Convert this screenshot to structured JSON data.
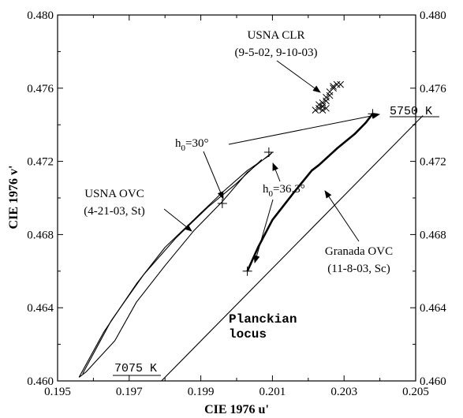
{
  "chart_data": {
    "type": "line",
    "xlabel": "CIE 1976 u'",
    "ylabel": "CIE 1976 v'",
    "xlim": [
      0.195,
      0.205
    ],
    "ylim": [
      0.46,
      0.48
    ],
    "x_ticks": [
      0.195,
      0.197,
      0.199,
      0.201,
      0.203,
      0.205
    ],
    "y_ticks": [
      0.46,
      0.464,
      0.468,
      0.472,
      0.476,
      0.48
    ],
    "x_tick_labels": [
      "0.195",
      "0.197",
      "0.199",
      "0.201",
      "0.203",
      "0.205"
    ],
    "y_tick_labels": [
      "0.460",
      "0.464",
      "0.468",
      "0.472",
      "0.476",
      "0.480"
    ],
    "grid": false,
    "series": [
      {
        "name": "Planckian locus",
        "style": "thin-line",
        "x": [
          0.1979,
          0.2052
        ],
        "y": [
          0.46,
          0.4745
        ]
      },
      {
        "name": "USNA OVC (4-21-03, St)",
        "style": "thin-loop",
        "x": [
          0.1956,
          0.1963,
          0.1972,
          0.198,
          0.1988,
          0.1996,
          0.2003,
          0.2009,
          0.201,
          0.2003,
          0.1996,
          0.1988,
          0.198,
          0.1972,
          0.1966,
          0.1958,
          0.1956
        ],
        "y": [
          0.4602,
          0.4627,
          0.4653,
          0.4673,
          0.4688,
          0.4703,
          0.4715,
          0.4723,
          0.4725,
          0.4714,
          0.4698,
          0.4682,
          0.4663,
          0.4643,
          0.4622,
          0.4605,
          0.4602
        ]
      },
      {
        "name": "USNA OVC (4-21-03, St) inner",
        "style": "thin-line",
        "x": [
          0.1957,
          0.1965,
          0.1974,
          0.1983,
          0.1992,
          0.2,
          0.2007
        ],
        "y": [
          0.4604,
          0.4633,
          0.4658,
          0.4678,
          0.4695,
          0.4708,
          0.4721
        ]
      },
      {
        "name": "Granada OVC (11-8-03, Sc)",
        "style": "thick-line",
        "x": [
          0.2003,
          0.2006,
          0.201,
          0.2016,
          0.2021,
          0.2023,
          0.2028,
          0.2033,
          0.2036,
          0.2038
        ],
        "y": [
          0.466,
          0.4673,
          0.4688,
          0.4703,
          0.4715,
          0.4718,
          0.4727,
          0.4735,
          0.4741,
          0.4746
        ]
      },
      {
        "name": "USNA CLR (9-5-02, 9-10-03)",
        "style": "cross-markers",
        "x": [
          0.2022,
          0.2023,
          0.2024,
          0.2023,
          0.2024,
          0.2025,
          0.2025,
          0.2026,
          0.2026,
          0.2027,
          0.2027,
          0.2028,
          0.2029,
          0.2024,
          0.2025
        ],
        "y": [
          0.4748,
          0.4749,
          0.475,
          0.4751,
          0.4752,
          0.4753,
          0.4755,
          0.4756,
          0.4758,
          0.476,
          0.4761,
          0.4762,
          0.4762,
          0.4748,
          0.4749
        ]
      }
    ],
    "plus_markers": [
      {
        "x": 0.1996,
        "y": 0.4697
      },
      {
        "x": 0.2009,
        "y": 0.4725
      },
      {
        "x": 0.2003,
        "y": 0.466
      },
      {
        "x": 0.2038,
        "y": 0.4746
      }
    ],
    "annotations": {
      "clr_line1": "USNA  CLR",
      "clr_line2": "(9-5-02, 9-10-03)",
      "ovc_line1": "USNA OVC",
      "ovc_line2": "(4-21-03, St)",
      "granada_line1": "Granada OVC",
      "granada_line2": "(11-8-03, Sc)",
      "h0_30": "h",
      "h0_30_sub": "0",
      "h0_30_rest": "=30°",
      "h0_363": "h",
      "h0_363_sub": "0",
      "h0_363_rest": "=36.3°",
      "k5750": "5750  K",
      "k7075": "7075  K",
      "planckian_line1": "Planckian",
      "planckian_line2": "locus"
    }
  }
}
